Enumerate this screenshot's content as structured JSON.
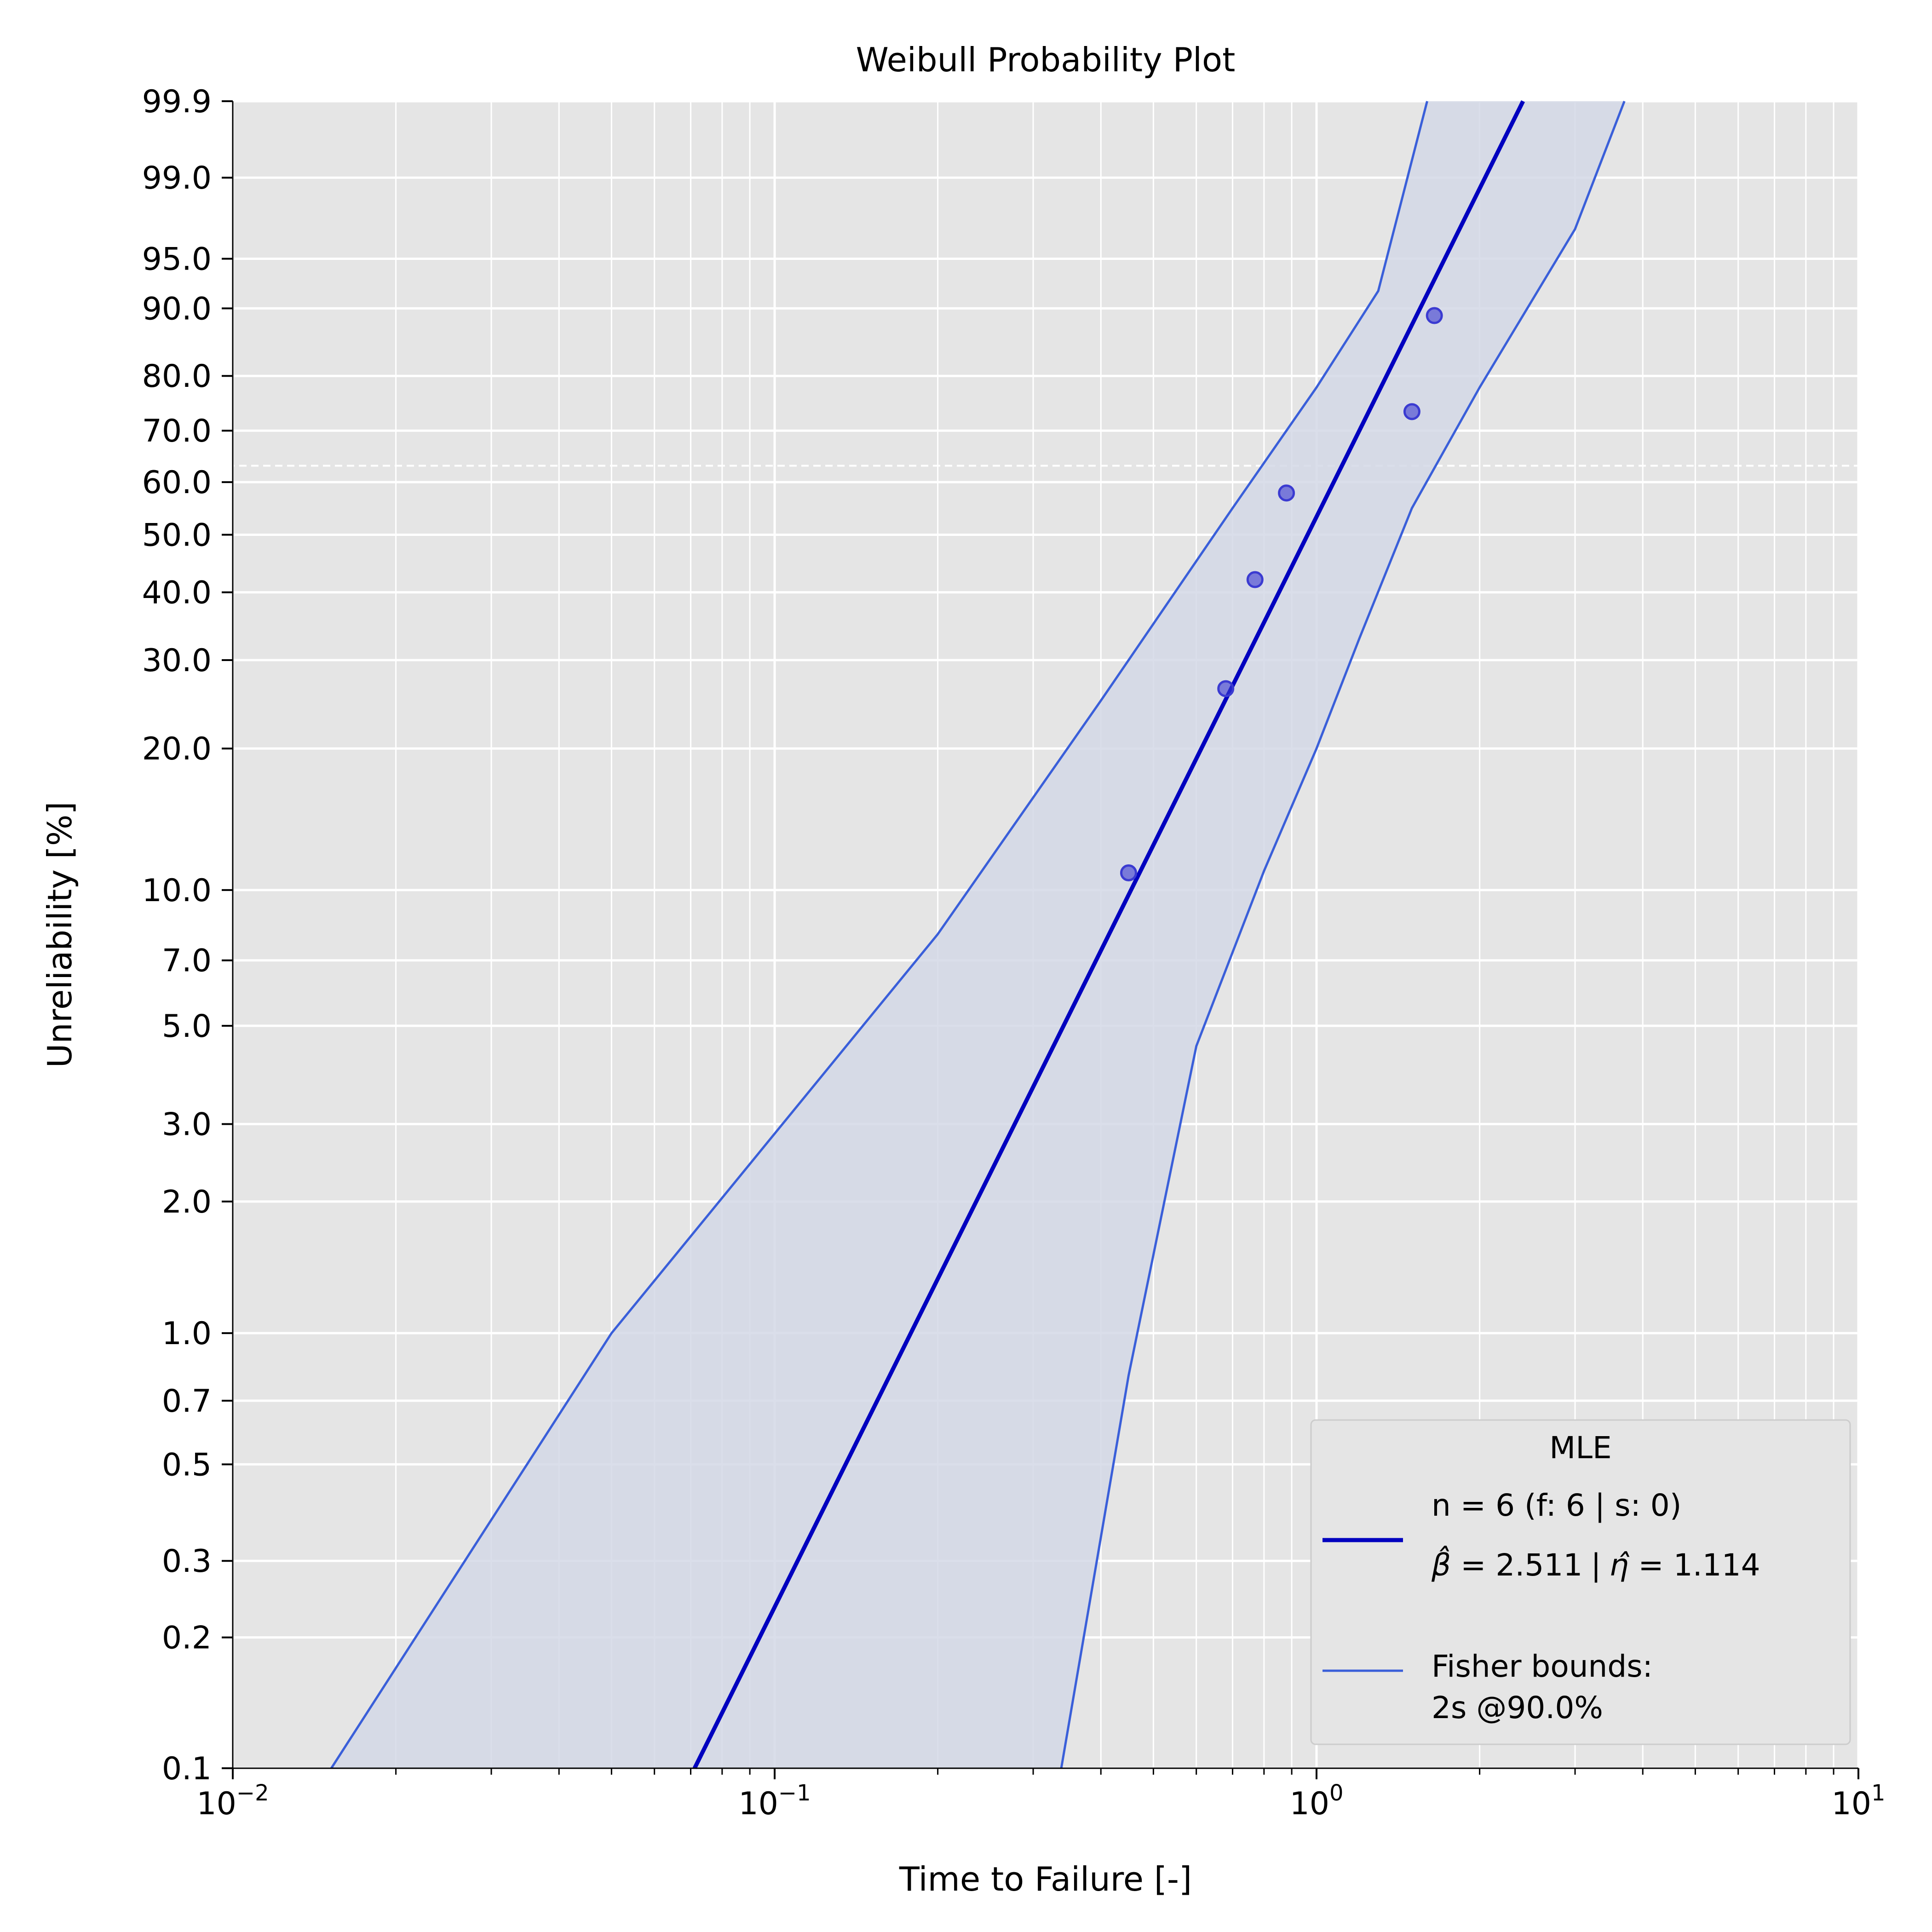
{
  "chart_data": {
    "type": "scatter",
    "title": "Weibull Probability Plot",
    "xlabel": "Time to Failure [-]",
    "ylabel": "Unreliability [%]",
    "x_scale": "log",
    "y_scale": "weibull",
    "xlim": [
      0.01,
      10
    ],
    "ylim": [
      0.1,
      99.9
    ],
    "grid": true,
    "x_ticks": [
      {
        "value": 0.01,
        "base": "10",
        "exp": "−2"
      },
      {
        "value": 0.1,
        "base": "10",
        "exp": "−1"
      },
      {
        "value": 1,
        "base": "10",
        "exp": "0"
      },
      {
        "value": 10,
        "base": "10",
        "exp": "1"
      }
    ],
    "y_ticks": [
      {
        "value": 0.1,
        "label": "0.1"
      },
      {
        "value": 0.2,
        "label": "0.2"
      },
      {
        "value": 0.3,
        "label": "0.3"
      },
      {
        "value": 0.5,
        "label": "0.5"
      },
      {
        "value": 0.7,
        "label": "0.7"
      },
      {
        "value": 1.0,
        "label": "1.0"
      },
      {
        "value": 2.0,
        "label": "2.0"
      },
      {
        "value": 3.0,
        "label": "3.0"
      },
      {
        "value": 5.0,
        "label": "5.0"
      },
      {
        "value": 7.0,
        "label": "7.0"
      },
      {
        "value": 10.0,
        "label": "10.0"
      },
      {
        "value": 20.0,
        "label": "20.0"
      },
      {
        "value": 30.0,
        "label": "30.0"
      },
      {
        "value": 40.0,
        "label": "40.0"
      },
      {
        "value": 50.0,
        "label": "50.0"
      },
      {
        "value": 60.0,
        "label": "60.0"
      },
      {
        "value": 70.0,
        "label": "70.0"
      },
      {
        "value": 80.0,
        "label": "80.0"
      },
      {
        "value": 90.0,
        "label": "90.0"
      },
      {
        "value": 95.0,
        "label": "95.0"
      },
      {
        "value": 99.0,
        "label": "99.0"
      },
      {
        "value": 99.9,
        "label": "99.9"
      }
    ],
    "reference_line_y": 63.2,
    "fit": {
      "beta": 2.511,
      "eta": 1.114,
      "color": "#0000bf"
    },
    "bounds": {
      "color": "#3a5fd9",
      "fill": "#d3d8e6",
      "lower": [
        [
          0.338,
          0.1
        ],
        [
          0.45,
          0.8
        ],
        [
          0.6,
          4.5
        ],
        [
          0.8,
          11
        ],
        [
          1.0,
          20
        ],
        [
          1.2,
          33
        ],
        [
          1.5,
          55
        ],
        [
          2.0,
          78
        ],
        [
          3.0,
          97
        ],
        [
          3.7,
          99.9
        ]
      ],
      "upper": [
        [
          0.0152,
          0.1
        ],
        [
          0.05,
          1.0
        ],
        [
          0.2,
          8.0
        ],
        [
          0.4,
          25
        ],
        [
          0.7,
          55
        ],
        [
          1.0,
          78
        ],
        [
          1.3,
          92
        ],
        [
          1.6,
          99.9
        ]
      ]
    },
    "series": [
      {
        "x": [
          0.45,
          0.68,
          0.77,
          0.88,
          1.5,
          1.65
        ],
        "y": [
          10.9,
          26.4,
          42.1,
          57.9,
          73.6,
          89.1
        ],
        "color": "#3b3bd1"
      }
    ],
    "legend": {
      "title": "MLE",
      "placement": "lower-right",
      "entry1_line1": "n = 6 (f: 6 | s: 0)",
      "entry1_line2_beta": "2.511",
      "entry1_line2_sep": "|",
      "entry1_line2_eta": "1.114",
      "entry2_line1": "Fisher bounds:",
      "entry2_line2": "2s @90.0%"
    }
  }
}
